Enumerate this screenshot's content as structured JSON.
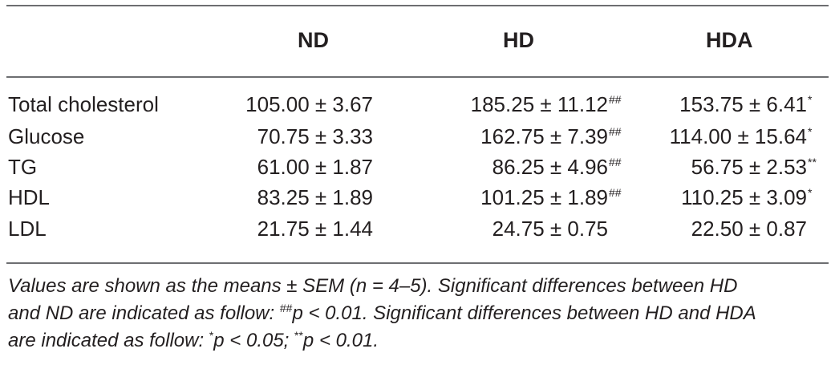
{
  "table": {
    "headers": [
      "",
      "ND",
      "HD",
      "HDA"
    ],
    "rows": [
      {
        "label": "Total cholesterol",
        "nd": "105.00 ± 3.67",
        "hd": "185.25 ± 11.12",
        "hd_mark": "##",
        "hda": "153.75 ± 6.41",
        "hda_mark": "*"
      },
      {
        "label": "Glucose",
        "nd": "70.75 ± 3.33",
        "hd": "162.75 ± 7.39",
        "hd_mark": "##",
        "hda": "114.00 ± 15.64",
        "hda_mark": "*"
      },
      {
        "label": "TG",
        "nd": "61.00 ± 1.87",
        "hd": "86.25 ± 4.96",
        "hd_mark": "##",
        "hda": "56.75 ± 2.53",
        "hda_mark": "**"
      },
      {
        "label": "HDL",
        "nd": "83.25 ± 1.89",
        "hd": "101.25 ± 1.89",
        "hd_mark": "##",
        "hda": "110.25 ± 3.09",
        "hda_mark": "*"
      },
      {
        "label": "LDL",
        "nd": "21.75 ± 1.44",
        "hd": "24.75 ± 0.75",
        "hd_mark": "",
        "hda": "22.50 ± 0.87",
        "hda_mark": ""
      }
    ]
  },
  "footnote": {
    "line1": "Values are shown as the means ± SEM (n = 4–5). Significant differences between HD",
    "line2_prefix": "and ND are indicated as follow: ",
    "line2_mark": "##",
    "line2_mid": "p < 0.01. Significant differences between HD and HDA",
    "line3_prefix": "are indicated as follow: ",
    "line3_mark1": "*",
    "line3_mid": "p < 0.05; ",
    "line3_mark2": "**",
    "line3_suffix": "p < 0.01."
  }
}
